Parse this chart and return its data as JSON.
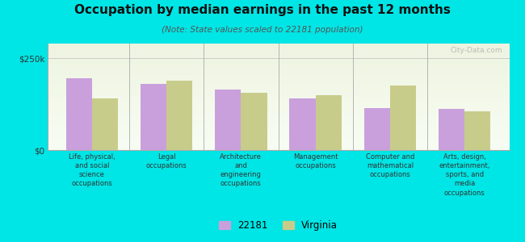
{
  "title": "Occupation by median earnings in the past 12 months",
  "subtitle": "(Note: State values scaled to 22181 population)",
  "categories": [
    "Life, physical,\nand social\nscience\noccupations",
    "Legal\noccupations",
    "Architecture\nand\nengineering\noccupations",
    "Management\noccupations",
    "Computer and\nmathematical\noccupations",
    "Arts, design,\nentertainment,\nsports, and\nmedia\noccupations"
  ],
  "values_22181": [
    195000,
    180000,
    165000,
    140000,
    115000,
    112000
  ],
  "values_virginia": [
    140000,
    188000,
    155000,
    150000,
    175000,
    105000
  ],
  "color_22181": "#c9a0dc",
  "color_virginia": "#c8cc8a",
  "yticks": [
    0,
    250000
  ],
  "ytick_labels": [
    "$0",
    "$250k"
  ],
  "ylim": [
    0,
    290000
  ],
  "legend_labels": [
    "22181",
    "Virginia"
  ],
  "background_color": "#00e5e5",
  "plot_bg": "#eef3e2",
  "watermark": "City-Data.com",
  "bar_width": 0.35
}
